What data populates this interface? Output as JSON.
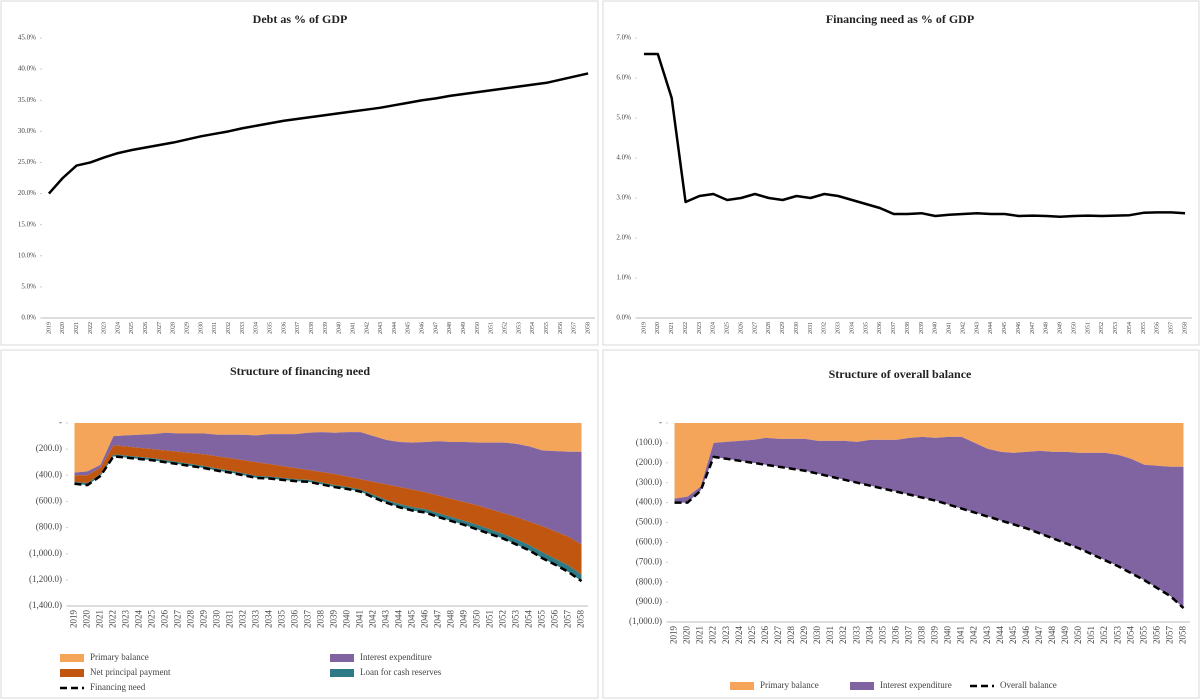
{
  "chart_data": [
    {
      "type": "line",
      "title": "Debt as % of GDP",
      "categories": [
        "2019",
        "2020",
        "2021",
        "2022",
        "2023",
        "2024",
        "2025",
        "2026",
        "2027",
        "2028",
        "2029",
        "2030",
        "2031",
        "2032",
        "2033",
        "2034",
        "2035",
        "2036",
        "2037",
        "2038",
        "2039",
        "2040",
        "2041",
        "2042",
        "2043",
        "2044",
        "2045",
        "2046",
        "2047",
        "2048",
        "2049",
        "2050",
        "2051",
        "2052",
        "2053",
        "2054",
        "2055",
        "2056",
        "2057",
        "2058"
      ],
      "series": [
        {
          "color": "#000000",
          "values": [
            20,
            22.5,
            24.5,
            25,
            25.8,
            26.5,
            27,
            27.4,
            27.8,
            28.2,
            28.7,
            29.2,
            29.6,
            30,
            30.5,
            30.9,
            31.3,
            31.7,
            32,
            32.3,
            32.6,
            32.9,
            33.2,
            33.5,
            33.8,
            34.2,
            34.6,
            35,
            35.3,
            35.7,
            36,
            36.3,
            36.6,
            36.9,
            37.2,
            37.5,
            37.8,
            38.3,
            38.8,
            39.3
          ]
        }
      ],
      "ylim": [
        0,
        45
      ],
      "yticks": [
        {
          "value": 0,
          "label": "0.0%"
        },
        {
          "value": 5,
          "label": "5.0%"
        },
        {
          "value": 10,
          "label": "10.0%"
        },
        {
          "value": 15,
          "label": "15.0%"
        },
        {
          "value": 20,
          "label": "20.0%"
        },
        {
          "value": 25,
          "label": "25.0%"
        },
        {
          "value": 30,
          "label": "30.0%"
        },
        {
          "value": 35,
          "label": "35.0%"
        },
        {
          "value": 40,
          "label": "40.0%"
        },
        {
          "value": 45,
          "label": "45.0%"
        }
      ]
    },
    {
      "type": "line",
      "title": "Financing need as % of GDP",
      "categories": [
        "2019",
        "2020",
        "2021",
        "2022",
        "2023",
        "2024",
        "2025",
        "2026",
        "2027",
        "2028",
        "2029",
        "2030",
        "2031",
        "2032",
        "2033",
        "2034",
        "2035",
        "2036",
        "2037",
        "2038",
        "2039",
        "2040",
        "2041",
        "2042",
        "2043",
        "2044",
        "2045",
        "2046",
        "2047",
        "2048",
        "2049",
        "2050",
        "2051",
        "2052",
        "2053",
        "2054",
        "2055",
        "2056",
        "2057",
        "2058"
      ],
      "series": [
        {
          "color": "#000000",
          "values": [
            6.6,
            6.6,
            5.5,
            2.9,
            3.05,
            3.1,
            2.95,
            3.0,
            3.1,
            3.0,
            2.95,
            3.05,
            3.0,
            3.1,
            3.05,
            2.95,
            2.85,
            2.75,
            2.6,
            2.6,
            2.62,
            2.55,
            2.58,
            2.6,
            2.62,
            2.6,
            2.6,
            2.55,
            2.56,
            2.55,
            2.53,
            2.55,
            2.56,
            2.55,
            2.56,
            2.57,
            2.63,
            2.64,
            2.64,
            2.62
          ]
        }
      ],
      "ylim": [
        0,
        7
      ],
      "yticks": [
        {
          "value": 0,
          "label": "0.0%"
        },
        {
          "value": 1,
          "label": "1.0%"
        },
        {
          "value": 2,
          "label": "2.0%"
        },
        {
          "value": 3,
          "label": "3.0%"
        },
        {
          "value": 4,
          "label": "4.0%"
        },
        {
          "value": 5,
          "label": "5.0%"
        },
        {
          "value": 6,
          "label": "6.0%"
        },
        {
          "value": 7,
          "label": "7.0%"
        }
      ]
    },
    {
      "type": "area",
      "title": "Structure of financing need",
      "legend_columns": 2,
      "categories": [
        "2019",
        "2020",
        "2021",
        "2022",
        "2023",
        "2024",
        "2025",
        "2026",
        "2027",
        "2028",
        "2029",
        "2030",
        "2031",
        "2032",
        "2033",
        "2034",
        "2035",
        "2036",
        "2037",
        "2038",
        "2039",
        "2040",
        "2041",
        "2042",
        "2043",
        "2044",
        "2045",
        "2046",
        "2047",
        "2048",
        "2049",
        "2050",
        "2051",
        "2052",
        "2053",
        "2054",
        "2055",
        "2056",
        "2057",
        "2058"
      ],
      "series": [
        {
          "name": "Primary balance",
          "color": "#f5a55a",
          "values": [
            -380,
            -370,
            -320,
            -100,
            -95,
            -90,
            -85,
            -75,
            -80,
            -80,
            -80,
            -90,
            -90,
            -90,
            -95,
            -85,
            -85,
            -85,
            -75,
            -70,
            -75,
            -70,
            -70,
            -100,
            -130,
            -145,
            -150,
            -145,
            -140,
            -145,
            -145,
            -150,
            -150,
            -150,
            -160,
            -180,
            -210,
            -215,
            -220,
            -220
          ]
        },
        {
          "name": "Interest expenditure",
          "color": "#8064a2",
          "values": [
            -20,
            -30,
            -20,
            -70,
            -85,
            -100,
            -115,
            -135,
            -140,
            -150,
            -160,
            -165,
            -180,
            -195,
            -205,
            -230,
            -245,
            -260,
            -285,
            -305,
            -315,
            -340,
            -360,
            -350,
            -340,
            -345,
            -360,
            -385,
            -415,
            -435,
            -460,
            -480,
            -510,
            -540,
            -560,
            -575,
            -580,
            -615,
            -650,
            -710
          ]
        },
        {
          "name": "Net principal payment",
          "color": "#c0560f",
          "values": [
            -50,
            -60,
            -50,
            -70,
            -70,
            -70,
            -70,
            -75,
            -80,
            -85,
            -90,
            -95,
            -95,
            -100,
            -105,
            -95,
            -90,
            -85,
            -75,
            -80,
            -85,
            -80,
            -80,
            -100,
            -120,
            -130,
            -135,
            -130,
            -135,
            -140,
            -145,
            -150,
            -155,
            -160,
            -170,
            -180,
            -200,
            -210,
            -220,
            -230
          ]
        },
        {
          "name": "Loan for cash reserves",
          "color": "#2e7b86",
          "values": [
            -15,
            -15,
            -15,
            -15,
            -15,
            -15,
            -15,
            -15,
            -15,
            -15,
            -15,
            -15,
            -15,
            -15,
            -15,
            -15,
            -15,
            -15,
            -15,
            -15,
            -15,
            -15,
            -15,
            -20,
            -20,
            -25,
            -25,
            -25,
            -30,
            -30,
            -30,
            -35,
            -35,
            -35,
            -40,
            -40,
            -45,
            -45,
            -50,
            -50
          ]
        },
        {
          "name": "Financing need",
          "color": "#000000",
          "type": "line",
          "dashed": true,
          "values": [
            -465,
            -475,
            -405,
            -255,
            -265,
            -275,
            -285,
            -300,
            -315,
            -330,
            -345,
            -365,
            -380,
            -400,
            -420,
            -425,
            -435,
            -445,
            -450,
            -470,
            -490,
            -505,
            -525,
            -570,
            -610,
            -645,
            -670,
            -685,
            -720,
            -750,
            -780,
            -815,
            -850,
            -885,
            -930,
            -975,
            -1035,
            -1085,
            -1140,
            -1210
          ]
        }
      ],
      "ylim": [
        -1400,
        0
      ],
      "yticks": [
        {
          "value": 0,
          "label": "-"
        },
        {
          "value": -200,
          "label": "(200.0)"
        },
        {
          "value": -400,
          "label": "(400.0)"
        },
        {
          "value": -600,
          "label": "(600.0)"
        },
        {
          "value": -800,
          "label": "(800.0)"
        },
        {
          "value": -1000,
          "label": "(1,000.0)"
        },
        {
          "value": -1200,
          "label": "(1,200.0)"
        },
        {
          "value": -1400,
          "label": "(1,400.0)"
        }
      ]
    },
    {
      "type": "area",
      "title": "Structure of overall balance",
      "legend_columns": 3,
      "categories": [
        "2019",
        "2020",
        "2021",
        "2022",
        "2023",
        "2024",
        "2025",
        "2026",
        "2027",
        "2028",
        "2029",
        "2030",
        "2031",
        "2032",
        "2033",
        "2034",
        "2035",
        "2036",
        "2037",
        "2038",
        "2039",
        "2040",
        "2041",
        "2042",
        "2043",
        "2044",
        "2045",
        "2046",
        "2047",
        "2048",
        "2049",
        "2050",
        "2051",
        "2052",
        "2053",
        "2054",
        "2055",
        "2056",
        "2057",
        "2058"
      ],
      "series": [
        {
          "name": "Primary balance",
          "color": "#f5a55a",
          "values": [
            -380,
            -370,
            -320,
            -100,
            -95,
            -90,
            -85,
            -75,
            -80,
            -80,
            -80,
            -90,
            -90,
            -90,
            -95,
            -85,
            -85,
            -85,
            -75,
            -70,
            -75,
            -70,
            -70,
            -100,
            -130,
            -145,
            -150,
            -145,
            -140,
            -145,
            -145,
            -150,
            -150,
            -150,
            -160,
            -180,
            -210,
            -215,
            -220,
            -220
          ]
        },
        {
          "name": "Interest expenditure",
          "color": "#8064a2",
          "values": [
            -20,
            -30,
            -20,
            -70,
            -85,
            -100,
            -115,
            -135,
            -140,
            -150,
            -160,
            -165,
            -180,
            -195,
            -205,
            -230,
            -245,
            -260,
            -285,
            -305,
            -315,
            -340,
            -360,
            -350,
            -340,
            -345,
            -360,
            -385,
            -415,
            -435,
            -460,
            -480,
            -510,
            -540,
            -560,
            -575,
            -580,
            -615,
            -650,
            -710
          ]
        },
        {
          "name": "Overall balance",
          "color": "#000000",
          "type": "line",
          "dashed": true,
          "values": [
            -400,
            -400,
            -340,
            -170,
            -180,
            -190,
            -200,
            -210,
            -220,
            -230,
            -240,
            -255,
            -270,
            -285,
            -300,
            -315,
            -330,
            -345,
            -360,
            -375,
            -390,
            -410,
            -430,
            -450,
            -470,
            -490,
            -510,
            -530,
            -555,
            -580,
            -605,
            -630,
            -660,
            -690,
            -720,
            -755,
            -790,
            -830,
            -870,
            -930
          ]
        }
      ],
      "ylim": [
        -1000,
        0
      ],
      "yticks": [
        {
          "value": 0,
          "label": "-"
        },
        {
          "value": -100,
          "label": "(100.0)"
        },
        {
          "value": -200,
          "label": "(200.0)"
        },
        {
          "value": -300,
          "label": "(300.0)"
        },
        {
          "value": -400,
          "label": "(400.0)"
        },
        {
          "value": -500,
          "label": "(500.0)"
        },
        {
          "value": -600,
          "label": "(600.0)"
        },
        {
          "value": -700,
          "label": "(700.0)"
        },
        {
          "value": -800,
          "label": "(800.0)"
        },
        {
          "value": -900,
          "label": "(900.0)"
        },
        {
          "value": -1000,
          "label": "(1,000.0)"
        }
      ]
    }
  ]
}
